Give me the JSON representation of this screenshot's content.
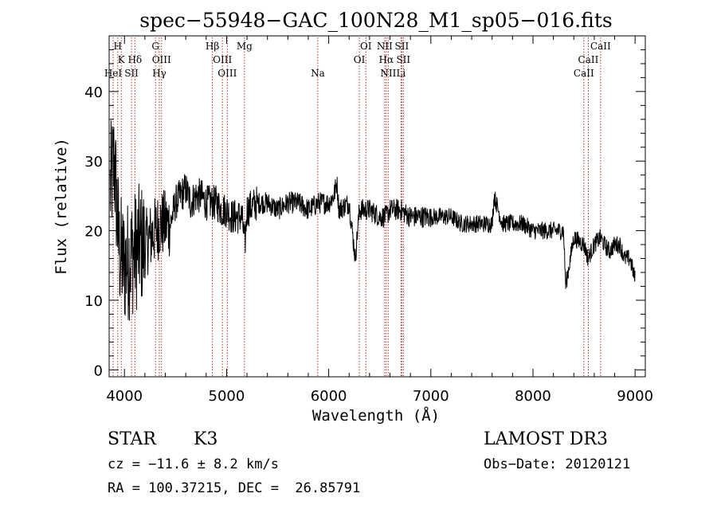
{
  "chart_data": {
    "type": "line",
    "title": "spec−55948−GAC_100N28_M1_sp05−016.fits",
    "xlabel": "Wavelength (Å)",
    "ylabel": "Flux (relative)",
    "xlim": [
      3850,
      9100
    ],
    "ylim": [
      -1,
      48
    ],
    "xticks": [
      4000,
      5000,
      6000,
      7000,
      8000,
      9000
    ],
    "yticks": [
      0,
      10,
      20,
      30,
      40
    ],
    "grid": false,
    "line_color": "#000000",
    "marker_color": "#b03030",
    "spectral_lines": [
      {
        "label": "H",
        "wavelength": 3934,
        "row": 0
      },
      {
        "label": "K",
        "wavelength": 3969,
        "row": 1
      },
      {
        "label": "HeI",
        "wavelength": 3889,
        "row": 2
      },
      {
        "label": "SII",
        "wavelength": 4069,
        "row": 2
      },
      {
        "label": "Hδ",
        "wavelength": 4102,
        "row": 1
      },
      {
        "label": "G",
        "wavelength": 4304,
        "row": 0
      },
      {
        "label": "OIII",
        "wavelength": 4363,
        "row": 1
      },
      {
        "label": "Hγ",
        "wavelength": 4341,
        "row": 2
      },
      {
        "label": "Hβ",
        "wavelength": 4861,
        "row": 0
      },
      {
        "label": "OIII",
        "wavelength": 4959,
        "row": 1
      },
      {
        "label": "OIII",
        "wavelength": 5007,
        "row": 2
      },
      {
        "label": "Mg",
        "wavelength": 5175,
        "row": 0
      },
      {
        "label": "Na",
        "wavelength": 5893,
        "row": 2
      },
      {
        "label": "OI",
        "wavelength": 6364,
        "row": 0
      },
      {
        "label": "OI",
        "wavelength": 6300,
        "row": 1
      },
      {
        "label": "NII",
        "wavelength": 6548,
        "row": 0
      },
      {
        "label": "Hα",
        "wavelength": 6563,
        "row": 1
      },
      {
        "label": "NII",
        "wavelength": 6583,
        "row": 2
      },
      {
        "label": "SII",
        "wavelength": 6716,
        "row": 0
      },
      {
        "label": "SII",
        "wavelength": 6731,
        "row": 1
      },
      {
        "label": "Li",
        "wavelength": 6708,
        "row": 2
      },
      {
        "label": "CaII",
        "wavelength": 8662,
        "row": 0
      },
      {
        "label": "CaII",
        "wavelength": 8542,
        "row": 1
      },
      {
        "label": "CaII",
        "wavelength": 8498,
        "row": 2
      }
    ],
    "spectrum_anchors": {
      "x": [
        3860,
        3900,
        3950,
        4000,
        4050,
        4100,
        4150,
        4200,
        4250,
        4300,
        4350,
        4400,
        4450,
        4500,
        4550,
        4600,
        4650,
        4700,
        4750,
        4800,
        4850,
        4900,
        4950,
        5000,
        5050,
        5100,
        5150,
        5180,
        5200,
        5300,
        5400,
        5500,
        5600,
        5700,
        5800,
        5900,
        6000,
        6050,
        6080,
        6100,
        6200,
        6260,
        6300,
        6400,
        6500,
        6560,
        6600,
        6700,
        6800,
        6900,
        7000,
        7100,
        7200,
        7300,
        7400,
        7500,
        7600,
        7620,
        7700,
        7800,
        7900,
        8000,
        8100,
        8200,
        8300,
        8320,
        8400,
        8500,
        8540,
        8600,
        8660,
        8700,
        8750,
        8800,
        8850,
        8900,
        8950,
        9000
      ],
      "y": [
        26,
        30,
        17,
        15,
        16,
        17,
        18,
        18,
        19,
        20,
        21,
        21,
        21,
        24,
        25,
        26,
        24,
        25,
        25,
        24,
        24,
        24,
        23,
        23,
        22,
        22,
        22,
        18,
        23,
        24,
        24,
        23,
        24,
        24,
        23,
        24,
        24,
        25,
        27,
        23,
        24,
        16,
        23,
        23,
        22,
        22,
        23,
        23,
        22,
        22,
        22,
        22,
        22,
        21,
        21,
        21,
        21,
        25,
        21,
        21,
        21,
        20,
        20,
        20,
        20,
        12,
        19,
        18,
        16,
        18,
        19,
        18,
        17,
        18,
        18,
        16,
        16,
        13
      ]
    }
  },
  "info": {
    "object_class": "STAR",
    "subclass": "K3",
    "survey": "LAMOST DR3",
    "redshift_line": "cz = −11.6 ± 8.2 km/s",
    "obs_date_line": "Obs−Date: 20120121",
    "coords_line": "RA = 100.37215, DEC =  26.85791"
  }
}
